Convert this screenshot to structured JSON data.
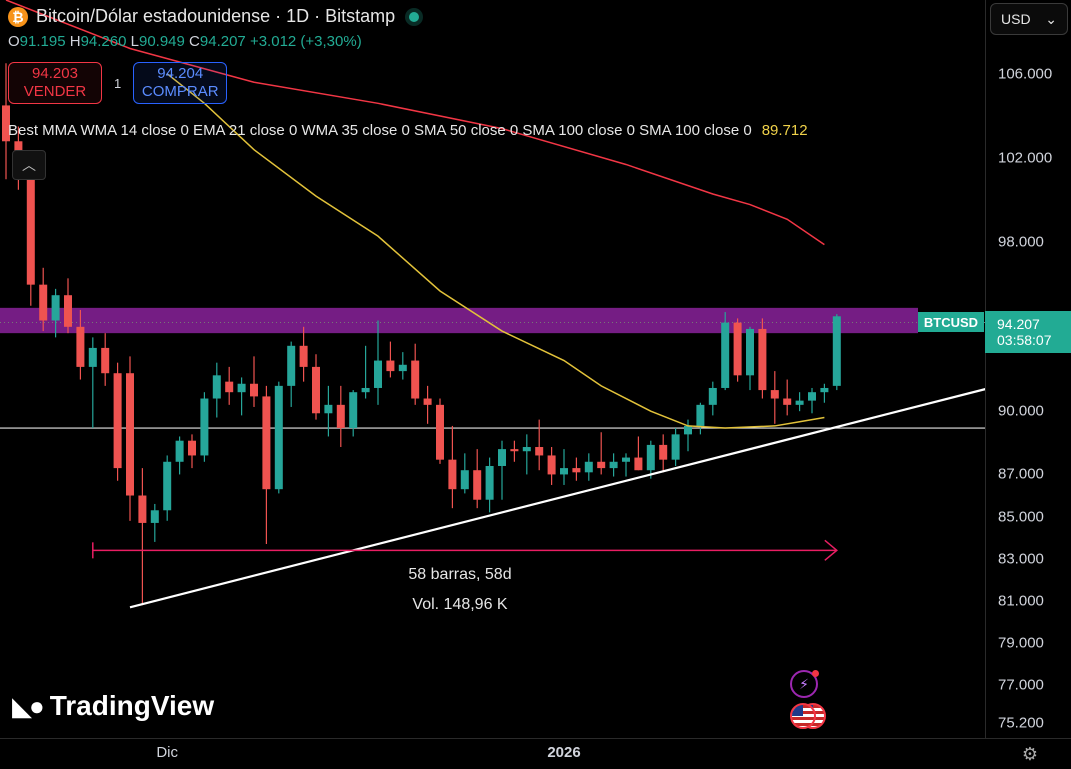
{
  "header": {
    "title": "Bitcoin/Dólar estadounidense · 1D · Bitstamp",
    "ohlc": [
      {
        "k": "O",
        "v": "91.195"
      },
      {
        "k": "H",
        "v": "94.260"
      },
      {
        "k": "L",
        "v": "90.949"
      },
      {
        "k": "C",
        "v": "94.207"
      }
    ],
    "change": "+3.012 (+3,30%)"
  },
  "trade": {
    "sell_price": "94.203",
    "sell_label": "VENDER",
    "quantity": "1",
    "buy_price": "94.204",
    "buy_label": "COMPRAR"
  },
  "indicator": {
    "label": "Best MMA WMA 14 close 0 EMA 21 close 0 WMA 35 close 0 SMA 50 close 0 SMA 100 close 0 SMA 100 close 0",
    "value": "89.712"
  },
  "axis": {
    "currency": "USD",
    "symbol_tag": "BTCUSD",
    "price_tag": "94.207",
    "countdown": "03:58:07"
  },
  "measure": {
    "bars": "58 barras, 58d",
    "volume": "Vol. 148,96 K"
  },
  "brand": "TradingView",
  "chart_data": {
    "type": "candlestick",
    "x_ticks": [
      {
        "label": "Dic",
        "index": 13
      },
      {
        "label": "2026",
        "index": 45
      }
    ],
    "y_ticks": [
      106000,
      102000,
      98000,
      94207,
      90000,
      87000,
      85000,
      83000,
      81000,
      79000,
      77000,
      75200
    ],
    "y_tick_labels": [
      "106.000",
      "102.000",
      "98.000",
      "94.207",
      "90.000",
      "87.000",
      "85.000",
      "83.000",
      "81.000",
      "79.000",
      "77.000",
      "75.200"
    ],
    "ylim": [
      74500,
      109500
    ],
    "candles": [
      {
        "o": 104500,
        "h": 106500,
        "l": 101000,
        "c": 102800
      },
      {
        "o": 102800,
        "h": 103500,
        "l": 100500,
        "c": 101000
      },
      {
        "o": 101000,
        "h": 101800,
        "l": 95000,
        "c": 96000
      },
      {
        "o": 96000,
        "h": 96800,
        "l": 93800,
        "c": 94300
      },
      {
        "o": 94300,
        "h": 95800,
        "l": 93500,
        "c": 95500
      },
      {
        "o": 95500,
        "h": 96300,
        "l": 93700,
        "c": 94000
      },
      {
        "o": 94000,
        "h": 94800,
        "l": 91500,
        "c": 92100
      },
      {
        "o": 92100,
        "h": 93500,
        "l": 89200,
        "c": 93000
      },
      {
        "o": 93000,
        "h": 93700,
        "l": 91200,
        "c": 91800
      },
      {
        "o": 91800,
        "h": 92300,
        "l": 86700,
        "c": 87300
      },
      {
        "o": 91800,
        "h": 92600,
        "l": 84800,
        "c": 86000
      },
      {
        "o": 86000,
        "h": 87300,
        "l": 80800,
        "c": 84700
      },
      {
        "o": 84700,
        "h": 85600,
        "l": 83800,
        "c": 85300
      },
      {
        "o": 85300,
        "h": 87900,
        "l": 84800,
        "c": 87600
      },
      {
        "o": 87600,
        "h": 88800,
        "l": 87000,
        "c": 88600
      },
      {
        "o": 88600,
        "h": 88900,
        "l": 87300,
        "c": 87900
      },
      {
        "o": 87900,
        "h": 90900,
        "l": 87600,
        "c": 90600
      },
      {
        "o": 90600,
        "h": 92300,
        "l": 89700,
        "c": 91700
      },
      {
        "o": 91400,
        "h": 92100,
        "l": 90300,
        "c": 90900
      },
      {
        "o": 90900,
        "h": 91600,
        "l": 89800,
        "c": 91300
      },
      {
        "o": 91300,
        "h": 92600,
        "l": 90200,
        "c": 90700
      },
      {
        "o": 90700,
        "h": 91200,
        "l": 83700,
        "c": 86300
      },
      {
        "o": 86300,
        "h": 91400,
        "l": 86100,
        "c": 91200
      },
      {
        "o": 91200,
        "h": 93300,
        "l": 90200,
        "c": 93100
      },
      {
        "o": 93100,
        "h": 94000,
        "l": 91400,
        "c": 92100
      },
      {
        "o": 92100,
        "h": 92700,
        "l": 89600,
        "c": 89900
      },
      {
        "o": 89900,
        "h": 91200,
        "l": 88800,
        "c": 90300
      },
      {
        "o": 90300,
        "h": 91200,
        "l": 88300,
        "c": 89200
      },
      {
        "o": 89200,
        "h": 91000,
        "l": 88800,
        "c": 90900
      },
      {
        "o": 90900,
        "h": 93100,
        "l": 90600,
        "c": 91100
      },
      {
        "o": 91100,
        "h": 94300,
        "l": 90300,
        "c": 92400
      },
      {
        "o": 92400,
        "h": 93300,
        "l": 91600,
        "c": 91900
      },
      {
        "o": 91900,
        "h": 92800,
        "l": 91500,
        "c": 92200
      },
      {
        "o": 92400,
        "h": 93200,
        "l": 90300,
        "c": 90600
      },
      {
        "o": 90600,
        "h": 91200,
        "l": 89400,
        "c": 90300
      },
      {
        "o": 90300,
        "h": 90600,
        "l": 87500,
        "c": 87700
      },
      {
        "o": 87700,
        "h": 89300,
        "l": 85400,
        "c": 86300
      },
      {
        "o": 86300,
        "h": 88000,
        "l": 86100,
        "c": 87200
      },
      {
        "o": 87200,
        "h": 88200,
        "l": 85400,
        "c": 85800
      },
      {
        "o": 85800,
        "h": 87800,
        "l": 85200,
        "c": 87400
      },
      {
        "o": 87400,
        "h": 88600,
        "l": 85800,
        "c": 88200
      },
      {
        "o": 88200,
        "h": 88600,
        "l": 87600,
        "c": 88100
      },
      {
        "o": 88100,
        "h": 88900,
        "l": 87000,
        "c": 88300
      },
      {
        "o": 88300,
        "h": 89600,
        "l": 87200,
        "c": 87900
      },
      {
        "o": 87900,
        "h": 88300,
        "l": 86500,
        "c": 87000
      },
      {
        "o": 87000,
        "h": 88200,
        "l": 86500,
        "c": 87300
      },
      {
        "o": 87300,
        "h": 87800,
        "l": 86700,
        "c": 87100
      },
      {
        "o": 87100,
        "h": 88000,
        "l": 86700,
        "c": 87600
      },
      {
        "o": 87600,
        "h": 89000,
        "l": 87000,
        "c": 87300
      },
      {
        "o": 87300,
        "h": 88000,
        "l": 86900,
        "c": 87600
      },
      {
        "o": 87600,
        "h": 88000,
        "l": 86900,
        "c": 87800
      },
      {
        "o": 87800,
        "h": 88800,
        "l": 87200,
        "c": 87200
      },
      {
        "o": 87200,
        "h": 88600,
        "l": 86800,
        "c": 88400
      },
      {
        "o": 88400,
        "h": 88900,
        "l": 87100,
        "c": 87700
      },
      {
        "o": 87700,
        "h": 89200,
        "l": 87400,
        "c": 88900
      },
      {
        "o": 88900,
        "h": 89600,
        "l": 88100,
        "c": 89300
      },
      {
        "o": 89300,
        "h": 90400,
        "l": 88900,
        "c": 90300
      },
      {
        "o": 90300,
        "h": 91400,
        "l": 89800,
        "c": 91100
      },
      {
        "o": 91100,
        "h": 94700,
        "l": 91000,
        "c": 94200
      },
      {
        "o": 94200,
        "h": 94400,
        "l": 91400,
        "c": 91700
      },
      {
        "o": 91700,
        "h": 94000,
        "l": 91000,
        "c": 93900
      },
      {
        "o": 93900,
        "h": 94400,
        "l": 90600,
        "c": 91000
      },
      {
        "o": 91000,
        "h": 91900,
        "l": 89400,
        "c": 90600
      },
      {
        "o": 90600,
        "h": 91500,
        "l": 89800,
        "c": 90300
      },
      {
        "o": 90300,
        "h": 90900,
        "l": 90000,
        "c": 90500
      },
      {
        "o": 90500,
        "h": 91100,
        "l": 89900,
        "c": 90900
      },
      {
        "o": 90900,
        "h": 91300,
        "l": 90400,
        "c": 91100
      },
      {
        "o": 91200,
        "h": 94600,
        "l": 91000,
        "c": 94500
      }
    ],
    "lines": [
      {
        "color": "#f23645",
        "points": [
          [
            0,
            109500
          ],
          [
            10,
            107200
          ],
          [
            20,
            105600
          ],
          [
            30,
            104600
          ],
          [
            40,
            103400
          ],
          [
            50,
            101700
          ],
          [
            57,
            100300
          ],
          [
            60,
            99800
          ],
          [
            63,
            99100
          ],
          [
            66,
            97900
          ]
        ]
      },
      {
        "color": "#e2c23a",
        "points": [
          [
            13,
            106000
          ],
          [
            16,
            104600
          ],
          [
            20,
            102400
          ],
          [
            25,
            100200
          ],
          [
            30,
            98300
          ],
          [
            35,
            95700
          ],
          [
            40,
            93800
          ],
          [
            45,
            92400
          ],
          [
            48,
            91200
          ],
          [
            52,
            90000
          ],
          [
            55,
            89300
          ],
          [
            58,
            89200
          ],
          [
            62,
            89300
          ],
          [
            64,
            89500
          ],
          [
            66,
            89700
          ]
        ]
      },
      {
        "color": "#ffffff",
        "points": [
          [
            10,
            80700
          ],
          [
            80,
            91200
          ]
        ]
      }
    ],
    "hline": 89200,
    "dotted_hline": 94207,
    "zone": {
      "from": 93700,
      "to": 94900,
      "color": "#9c27b0"
    },
    "measure_arrow": {
      "x_from": 7,
      "x_to": 67,
      "y": 83400,
      "color": "#e91e63"
    }
  }
}
